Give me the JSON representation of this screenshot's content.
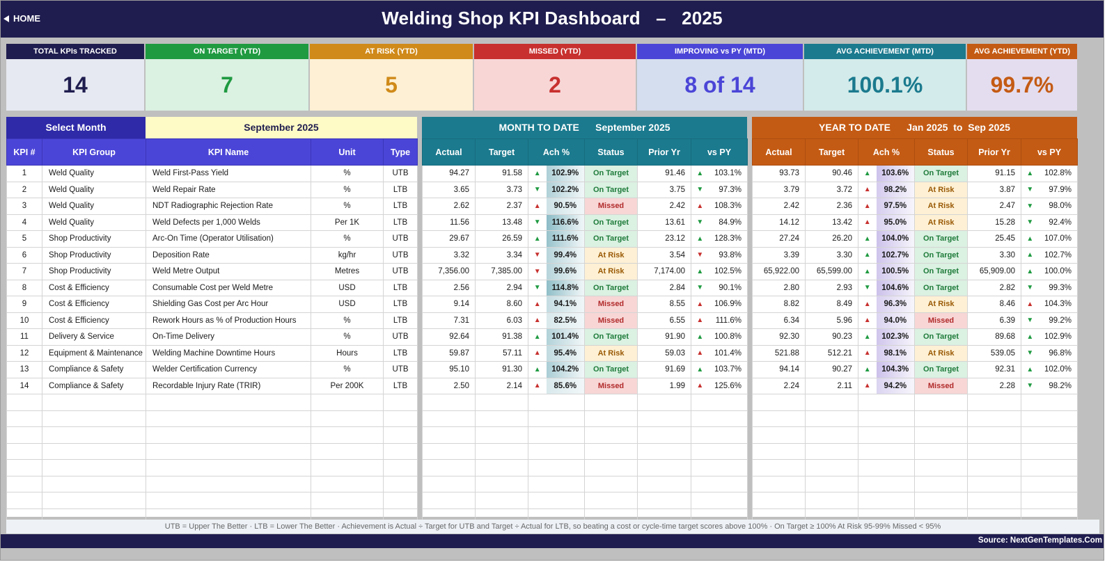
{
  "header": {
    "home_label": "HOME",
    "title": "Welding Shop KPI Dashboard   –   2025"
  },
  "colors": {
    "banner": "#1f1d4f",
    "kpi_header": "#4b45d7",
    "mtd": "#1b7a8e",
    "ytd": "#c45b14",
    "on_target": "#1f9a41",
    "missed": "#c7302e"
  },
  "cards": [
    {
      "label": "TOTAL KPIs TRACKED",
      "value": "14",
      "head": "#1f1d4f",
      "bg": "#e6e9f1",
      "fg": "#1f1d4f",
      "w": 200
    },
    {
      "label": "ON TARGET (YTD)",
      "value": "7",
      "head": "#1f9a41",
      "bg": "#dbf1e2",
      "fg": "#1f9a41",
      "w": 236
    },
    {
      "label": "AT RISK (YTD)",
      "value": "5",
      "head": "#d08a19",
      "bg": "#fdf0d4",
      "fg": "#d08a19",
      "w": 236
    },
    {
      "label": "MISSED (YTD)",
      "value": "2",
      "head": "#c7302e",
      "bg": "#f8d6d6",
      "fg": "#c7302e",
      "w": 234
    },
    {
      "label": "IMPROVING vs PY (MTD)",
      "value": "8 of 14",
      "head": "#4b45d7",
      "bg": "#d4deef",
      "fg": "#4b45d7",
      "w": 240
    },
    {
      "label": "AVG ACHIEVEMENT (MTD)",
      "value": "100.1%",
      "head": "#1b7a8e",
      "bg": "#d3ebea",
      "fg": "#1b7a8e",
      "w": 234
    },
    {
      "label": "AVG ACHIEVEMENT (YTD)",
      "value": "99.7%",
      "head": "#c45b14",
      "bg": "#e4ddef",
      "fg": "#c45b14",
      "w": 160
    }
  ],
  "left": {
    "select_label": "Select Month",
    "month_value": "September 2025",
    "cols": [
      "KPI #",
      "KPI Group",
      "KPI Name",
      "Unit",
      "Type"
    ]
  },
  "mtd": {
    "title": "MONTH TO DATE      September 2025",
    "cols": [
      "Actual",
      "Target",
      "Ach %",
      "Status",
      "Prior Yr",
      "vs PY"
    ]
  },
  "ytd": {
    "title": "YEAR TO DATE      Jan 2025  to  Sep 2025",
    "cols": [
      "Actual",
      "Target",
      "Ach %",
      "Status",
      "Prior Yr",
      "vs PY"
    ]
  },
  "rows": [
    {
      "n": "1",
      "group": "Weld Quality",
      "name": "Weld First-Pass Yield",
      "unit": "%",
      "type": "UTB",
      "m": {
        "a": "94.27",
        "t": "91.58",
        "ach": "102.9%",
        "achv": 102.9,
        "d": "up",
        "s": "On Target",
        "py": "91.46",
        "vd": "up",
        "vs": "103.1%"
      },
      "y": {
        "a": "93.73",
        "t": "90.46",
        "ach": "103.6%",
        "achv": 103.6,
        "d": "up",
        "s": "On Target",
        "py": "91.15",
        "vd": "up",
        "vs": "102.8%"
      }
    },
    {
      "n": "2",
      "group": "Weld Quality",
      "name": "Weld Repair Rate",
      "unit": "%",
      "type": "LTB",
      "m": {
        "a": "3.65",
        "t": "3.73",
        "ach": "102.2%",
        "achv": 102.2,
        "d": "dn",
        "s": "On Target",
        "py": "3.75",
        "vd": "dn",
        "vs": "97.3%"
      },
      "y": {
        "a": "3.79",
        "t": "3.72",
        "ach": "98.2%",
        "achv": 98.2,
        "d": "upr",
        "s": "At Risk",
        "py": "3.87",
        "vd": "dn",
        "vs": "97.9%"
      }
    },
    {
      "n": "3",
      "group": "Weld Quality",
      "name": "NDT Radiographic Rejection Rate",
      "unit": "%",
      "type": "LTB",
      "m": {
        "a": "2.62",
        "t": "2.37",
        "ach": "90.5%",
        "achv": 90.5,
        "d": "upr",
        "s": "Missed",
        "py": "2.42",
        "vd": "upr",
        "vs": "108.3%"
      },
      "y": {
        "a": "2.42",
        "t": "2.36",
        "ach": "97.5%",
        "achv": 97.5,
        "d": "upr",
        "s": "At Risk",
        "py": "2.47",
        "vd": "dn",
        "vs": "98.0%"
      }
    },
    {
      "n": "4",
      "group": "Weld Quality",
      "name": "Weld Defects per 1,000 Welds",
      "unit": "Per 1K",
      "type": "LTB",
      "m": {
        "a": "11.56",
        "t": "13.48",
        "ach": "116.6%",
        "achv": 116.6,
        "d": "dn",
        "s": "On Target",
        "py": "13.61",
        "vd": "dn",
        "vs": "84.9%"
      },
      "y": {
        "a": "14.12",
        "t": "13.42",
        "ach": "95.0%",
        "achv": 95.0,
        "d": "upr",
        "s": "At Risk",
        "py": "15.28",
        "vd": "dn",
        "vs": "92.4%"
      }
    },
    {
      "n": "5",
      "group": "Shop Productivity",
      "name": "Arc-On Time (Operator Utilisation)",
      "unit": "%",
      "type": "UTB",
      "m": {
        "a": "29.67",
        "t": "26.59",
        "ach": "111.6%",
        "achv": 111.6,
        "d": "up",
        "s": "On Target",
        "py": "23.12",
        "vd": "up",
        "vs": "128.3%"
      },
      "y": {
        "a": "27.24",
        "t": "26.20",
        "ach": "104.0%",
        "achv": 104.0,
        "d": "up",
        "s": "On Target",
        "py": "25.45",
        "vd": "up",
        "vs": "107.0%"
      }
    },
    {
      "n": "6",
      "group": "Shop Productivity",
      "name": "Deposition Rate",
      "unit": "kg/hr",
      "type": "UTB",
      "m": {
        "a": "3.32",
        "t": "3.34",
        "ach": "99.4%",
        "achv": 99.4,
        "d": "dnr",
        "s": "At Risk",
        "py": "3.54",
        "vd": "dnr",
        "vs": "93.8%"
      },
      "y": {
        "a": "3.39",
        "t": "3.30",
        "ach": "102.7%",
        "achv": 102.7,
        "d": "up",
        "s": "On Target",
        "py": "3.30",
        "vd": "up",
        "vs": "102.7%"
      }
    },
    {
      "n": "7",
      "group": "Shop Productivity",
      "name": "Weld Metre Output",
      "unit": "Metres",
      "type": "UTB",
      "m": {
        "a": "7,356.00",
        "t": "7,385.00",
        "ach": "99.6%",
        "achv": 99.6,
        "d": "dnr",
        "s": "At Risk",
        "py": "7,174.00",
        "vd": "up",
        "vs": "102.5%"
      },
      "y": {
        "a": "65,922.00",
        "t": "65,599.00",
        "ach": "100.5%",
        "achv": 100.5,
        "d": "up",
        "s": "On Target",
        "py": "65,909.00",
        "vd": "up",
        "vs": "100.0%"
      }
    },
    {
      "n": "8",
      "group": "Cost & Efficiency",
      "name": "Consumable Cost per Weld Metre",
      "unit": "USD",
      "type": "LTB",
      "m": {
        "a": "2.56",
        "t": "2.94",
        "ach": "114.8%",
        "achv": 114.8,
        "d": "dn",
        "s": "On Target",
        "py": "2.84",
        "vd": "dn",
        "vs": "90.1%"
      },
      "y": {
        "a": "2.80",
        "t": "2.93",
        "ach": "104.6%",
        "achv": 104.6,
        "d": "dn",
        "s": "On Target",
        "py": "2.82",
        "vd": "dn",
        "vs": "99.3%"
      }
    },
    {
      "n": "9",
      "group": "Cost & Efficiency",
      "name": "Shielding Gas Cost per Arc Hour",
      "unit": "USD",
      "type": "LTB",
      "m": {
        "a": "9.14",
        "t": "8.60",
        "ach": "94.1%",
        "achv": 94.1,
        "d": "upr",
        "s": "Missed",
        "py": "8.55",
        "vd": "upr",
        "vs": "106.9%"
      },
      "y": {
        "a": "8.82",
        "t": "8.49",
        "ach": "96.3%",
        "achv": 96.3,
        "d": "upr",
        "s": "At Risk",
        "py": "8.46",
        "vd": "upr",
        "vs": "104.3%"
      }
    },
    {
      "n": "10",
      "group": "Cost & Efficiency",
      "name": "Rework Hours as % of Production Hours",
      "unit": "%",
      "type": "LTB",
      "m": {
        "a": "7.31",
        "t": "6.03",
        "ach": "82.5%",
        "achv": 82.5,
        "d": "upr",
        "s": "Missed",
        "py": "6.55",
        "vd": "upr",
        "vs": "111.6%"
      },
      "y": {
        "a": "6.34",
        "t": "5.96",
        "ach": "94.0%",
        "achv": 94.0,
        "d": "upr",
        "s": "Missed",
        "py": "6.39",
        "vd": "dn",
        "vs": "99.2%"
      }
    },
    {
      "n": "11",
      "group": "Delivery & Service",
      "name": "On-Time Delivery",
      "unit": "%",
      "type": "UTB",
      "m": {
        "a": "92.64",
        "t": "91.38",
        "ach": "101.4%",
        "achv": 101.4,
        "d": "up",
        "s": "On Target",
        "py": "91.90",
        "vd": "up",
        "vs": "100.8%"
      },
      "y": {
        "a": "92.30",
        "t": "90.23",
        "ach": "102.3%",
        "achv": 102.3,
        "d": "up",
        "s": "On Target",
        "py": "89.68",
        "vd": "up",
        "vs": "102.9%"
      }
    },
    {
      "n": "12",
      "group": "Equipment & Maintenance",
      "name": "Welding Machine Downtime Hours",
      "unit": "Hours",
      "type": "LTB",
      "m": {
        "a": "59.87",
        "t": "57.11",
        "ach": "95.4%",
        "achv": 95.4,
        "d": "upr",
        "s": "At Risk",
        "py": "59.03",
        "vd": "upr",
        "vs": "101.4%"
      },
      "y": {
        "a": "521.88",
        "t": "512.21",
        "ach": "98.1%",
        "achv": 98.1,
        "d": "upr",
        "s": "At Risk",
        "py": "539.05",
        "vd": "dn",
        "vs": "96.8%"
      }
    },
    {
      "n": "13",
      "group": "Compliance & Safety",
      "name": "Welder Certification Currency",
      "unit": "%",
      "type": "UTB",
      "m": {
        "a": "95.10",
        "t": "91.30",
        "ach": "104.2%",
        "achv": 104.2,
        "d": "up",
        "s": "On Target",
        "py": "91.69",
        "vd": "up",
        "vs": "103.7%"
      },
      "y": {
        "a": "94.14",
        "t": "90.27",
        "ach": "104.3%",
        "achv": 104.3,
        "d": "up",
        "s": "On Target",
        "py": "92.31",
        "vd": "up",
        "vs": "102.0%"
      }
    },
    {
      "n": "14",
      "group": "Compliance & Safety",
      "name": "Recordable Injury Rate (TRIR)",
      "unit": "Per 200K",
      "type": "LTB",
      "m": {
        "a": "2.50",
        "t": "2.14",
        "ach": "85.6%",
        "achv": 85.6,
        "d": "upr",
        "s": "Missed",
        "py": "1.99",
        "vd": "upr",
        "vs": "125.6%"
      },
      "y": {
        "a": "2.24",
        "t": "2.11",
        "ach": "94.2%",
        "achv": 94.2,
        "d": "upr",
        "s": "Missed",
        "py": "2.28",
        "vd": "dn",
        "vs": "98.2%"
      }
    }
  ],
  "footer": {
    "note": "UTB = Upper The Better   ·   LTB = Lower The Better   ·   Achievement is Actual ÷ Target for UTB and Target ÷ Actual for LTB, so beating a cost or cycle-time target scores above 100%   ·   On Target ≥ 100%    At Risk 95-99%    Missed < 95%",
    "source": "Source: NextGenTemplates.Com"
  }
}
